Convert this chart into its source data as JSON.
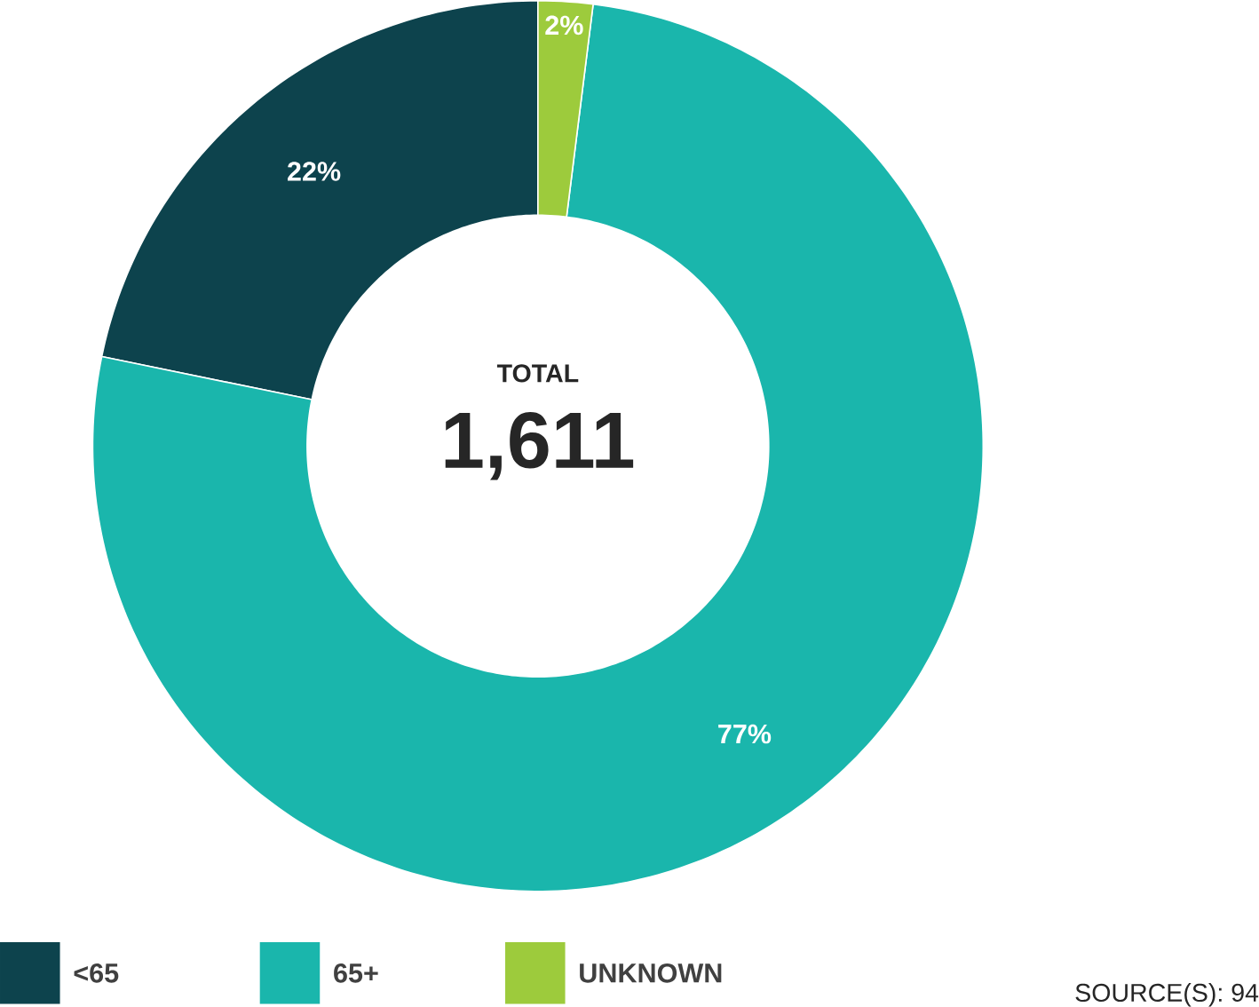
{
  "chart_data": {
    "type": "donut",
    "categories": [
      "<65",
      "65+",
      "UNKNOWN"
    ],
    "values": [
      22,
      77,
      2
    ],
    "colors": [
      "#0d434d",
      "#1ab6ac",
      "#9dcb3c"
    ],
    "value_labels": [
      "22%",
      "77%",
      "2%"
    ],
    "legend": "bottom",
    "annotations": [
      "TOTAL",
      "1,611",
      "SOURCE(S): 94"
    ]
  }
}
